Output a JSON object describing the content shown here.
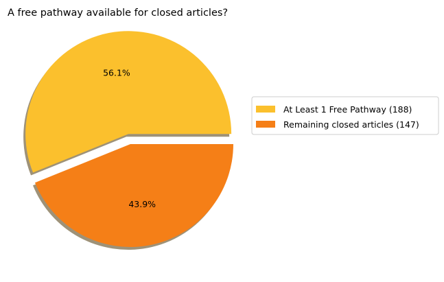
{
  "chart_data": {
    "type": "pie",
    "title": "A free pathway available for closed articles?",
    "slices": [
      {
        "label": "At Least 1 Free Pathway (188)",
        "value": 188,
        "percent_label": "56.1%",
        "color": "#fbc02d",
        "exploded": true
      },
      {
        "label": "Remaining closed articles (147)",
        "value": 147,
        "percent_label": "43.9%",
        "color": "#f57f17",
        "exploded": false
      }
    ],
    "shadow": true,
    "shadow_color": "#9e9278",
    "legend_position": "right",
    "start_angle_deg": 0,
    "direction": "counterclockwise"
  }
}
